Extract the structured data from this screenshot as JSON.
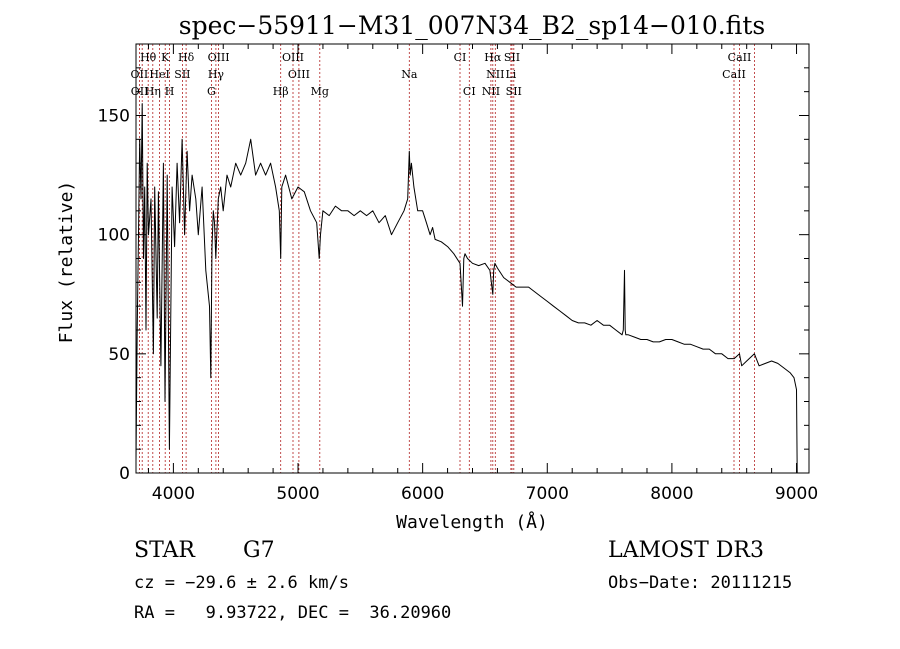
{
  "chart_data": {
    "type": "line",
    "title": "spec−55911−M31_007N34_B2_sp14−010.fits",
    "xlabel": "Wavelength (Å)",
    "ylabel": "Flux (relative)",
    "xlim": [
      3700,
      9100
    ],
    "ylim": [
      0,
      180
    ],
    "xticks": [
      {
        "value": 4000,
        "label": "4000"
      },
      {
        "value": 5000,
        "label": "5000"
      },
      {
        "value": 6000,
        "label": "6000"
      },
      {
        "value": 7000,
        "label": "7000"
      },
      {
        "value": 8000,
        "label": "8000"
      },
      {
        "value": 9000,
        "label": "9000"
      }
    ],
    "yticks": [
      {
        "value": 0,
        "label": "0"
      },
      {
        "value": 50,
        "label": "50"
      },
      {
        "value": 100,
        "label": "100"
      },
      {
        "value": 150,
        "label": "150"
      }
    ],
    "series": [
      {
        "name": "flux",
        "x": [
          3700,
          3710,
          3720,
          3730,
          3740,
          3750,
          3760,
          3770,
          3780,
          3790,
          3800,
          3820,
          3840,
          3850,
          3870,
          3880,
          3900,
          3920,
          3933,
          3950,
          3968,
          3990,
          4010,
          4030,
          4050,
          4070,
          4090,
          4101,
          4110,
          4130,
          4150,
          4180,
          4200,
          4230,
          4260,
          4290,
          4300,
          4310,
          4320,
          4330,
          4340,
          4360,
          4380,
          4400,
          4430,
          4460,
          4500,
          4540,
          4580,
          4620,
          4660,
          4700,
          4740,
          4780,
          4820,
          4850,
          4861,
          4870,
          4900,
          4950,
          5000,
          5050,
          5100,
          5150,
          5170,
          5180,
          5200,
          5250,
          5300,
          5350,
          5400,
          5450,
          5500,
          5550,
          5600,
          5650,
          5700,
          5750,
          5800,
          5850,
          5880,
          5893,
          5900,
          5910,
          5930,
          5960,
          6000,
          6030,
          6060,
          6080,
          6100,
          6150,
          6200,
          6250,
          6300,
          6320,
          6330,
          6340,
          6360,
          6400,
          6450,
          6500,
          6540,
          6563,
          6570,
          6580,
          6600,
          6650,
          6700,
          6750,
          6800,
          6850,
          6900,
          6950,
          7000,
          7050,
          7100,
          7150,
          7200,
          7250,
          7300,
          7350,
          7400,
          7450,
          7500,
          7550,
          7600,
          7610,
          7620,
          7625,
          7630,
          7650,
          7700,
          7750,
          7800,
          7850,
          7900,
          7950,
          8000,
          8050,
          8100,
          8150,
          8200,
          8250,
          8300,
          8350,
          8400,
          8450,
          8500,
          8542,
          8560,
          8600,
          8662,
          8700,
          8750,
          8800,
          8850,
          8900,
          8950,
          8980,
          9000,
          9005
        ],
        "y": [
          5,
          60,
          100,
          140,
          115,
          155,
          90,
          120,
          60,
          130,
          100,
          115,
          50,
          120,
          65,
          118,
          45,
          130,
          30,
          125,
          10,
          120,
          95,
          130,
          105,
          140,
          100,
          120,
          135,
          110,
          125,
          115,
          100,
          120,
          85,
          70,
          40,
          95,
          110,
          105,
          90,
          115,
          120,
          110,
          125,
          120,
          130,
          125,
          130,
          140,
          125,
          130,
          125,
          130,
          120,
          110,
          90,
          120,
          125,
          115,
          120,
          118,
          110,
          105,
          90,
          100,
          110,
          108,
          112,
          110,
          110,
          108,
          110,
          108,
          110,
          105,
          108,
          100,
          105,
          110,
          115,
          135,
          125,
          130,
          120,
          110,
          110,
          105,
          100,
          103,
          98,
          97,
          95,
          92,
          88,
          70,
          90,
          92,
          90,
          88,
          87,
          88,
          85,
          75,
          85,
          88,
          86,
          82,
          80,
          78,
          78,
          78,
          76,
          74,
          72,
          70,
          68,
          66,
          64,
          63,
          63,
          62,
          64,
          62,
          62,
          60,
          58,
          60,
          85,
          60,
          58,
          58,
          57,
          56,
          56,
          55,
          55,
          56,
          56,
          55,
          54,
          54,
          53,
          52,
          52,
          50,
          50,
          48,
          48,
          50,
          45,
          47,
          50,
          45,
          46,
          47,
          46,
          44,
          42,
          40,
          35,
          0
        ]
      }
    ],
    "line_labels": [
      {
        "label": "Hθ",
        "wavelength": 3798
      },
      {
        "label": "K",
        "wavelength": 3934
      },
      {
        "label": "Hδ",
        "wavelength": 4102
      },
      {
        "label": "OIII",
        "wavelength": 4363
      },
      {
        "label": "OIII",
        "wavelength": 4960
      },
      {
        "label": "CI",
        "wavelength": 6300
      },
      {
        "label": "Hα",
        "wavelength": 6563
      },
      {
        "label": "SII",
        "wavelength": 6717
      },
      {
        "label": "CaII",
        "wavelength": 8542
      },
      {
        "label": "OII",
        "wavelength": 3727
      },
      {
        "label": "HeI",
        "wavelength": 3889
      },
      {
        "label": "SII",
        "wavelength": 4072
      },
      {
        "label": "Hγ",
        "wavelength": 4341
      },
      {
        "label": "OIII",
        "wavelength": 5007
      },
      {
        "label": "Na",
        "wavelength": 5893
      },
      {
        "label": "NII",
        "wavelength": 6583
      },
      {
        "label": "Li",
        "wavelength": 6708
      },
      {
        "label": "CaII",
        "wavelength": 8498
      },
      {
        "label": "OII",
        "wavelength": 3729
      },
      {
        "label": "Hη",
        "wavelength": 3835
      },
      {
        "label": "H",
        "wavelength": 3969
      },
      {
        "label": "G",
        "wavelength": 4305
      },
      {
        "label": "Hβ",
        "wavelength": 4861
      },
      {
        "label": "Mg",
        "wavelength": 5175
      },
      {
        "label": "CI",
        "wavelength": 6374
      },
      {
        "label": "NII",
        "wavelength": 6548
      },
      {
        "label": "SII",
        "wavelength": 6731
      },
      {
        "label": "CaII",
        "wavelength": 8662
      }
    ],
    "marker_lines": [
      3727,
      3750,
      3798,
      3835,
      3889,
      3934,
      3969,
      4072,
      4102,
      4305,
      4341,
      4363,
      4861,
      4960,
      5007,
      5175,
      5893,
      6300,
      6374,
      6548,
      6563,
      6583,
      6708,
      6717,
      6731,
      8498,
      8542,
      8662
    ]
  },
  "info": {
    "object_class": "STAR",
    "subclass": "G7",
    "survey": "LAMOST DR3",
    "redshift": "cz = −29.6 ± 2.6 km/s",
    "obs_date": "Obs−Date: 20111215",
    "coords": "RA =   9.93722, DEC =  36.20960"
  },
  "colors": {
    "marker_line": "#b22222",
    "spectrum": "#000000",
    "axes": "#000000"
  }
}
